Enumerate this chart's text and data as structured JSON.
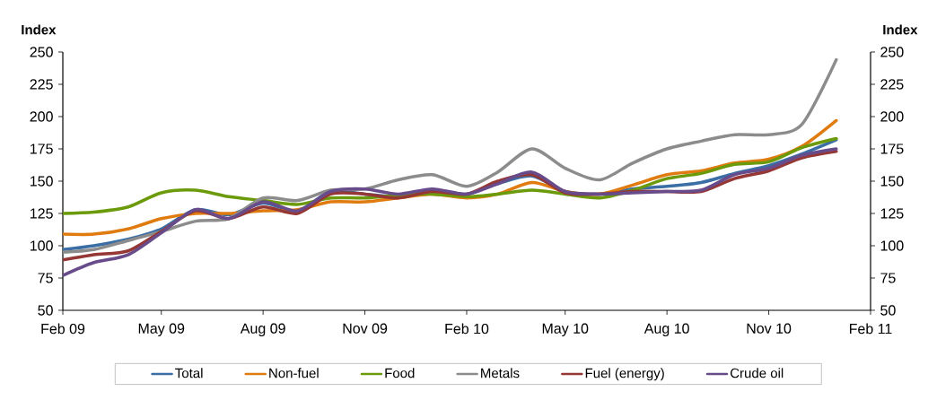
{
  "chart_data": {
    "type": "line",
    "ylabel": "Index",
    "y2label": "Index",
    "x": [
      "2009-02",
      "2009-03",
      "2009-04",
      "2009-05",
      "2009-06",
      "2009-07",
      "2009-08",
      "2009-09",
      "2009-10",
      "2009-11",
      "2009-12",
      "2010-01",
      "2010-02",
      "2010-03",
      "2010-04",
      "2010-05",
      "2010-06",
      "2010-07",
      "2010-08",
      "2010-09",
      "2010-10",
      "2010-11",
      "2010-12",
      "2011-01"
    ],
    "xlim": [
      "2009-02",
      "2011-02"
    ],
    "xticks": [
      {
        "value": "2009-02",
        "label": "Feb 09"
      },
      {
        "value": "2009-05",
        "label": "May 09"
      },
      {
        "value": "2009-08",
        "label": "Aug 09"
      },
      {
        "value": "2009-11",
        "label": "Nov 09"
      },
      {
        "value": "2010-02",
        "label": "Feb 10"
      },
      {
        "value": "2010-05",
        "label": "May 10"
      },
      {
        "value": "2010-08",
        "label": "Aug 10"
      },
      {
        "value": "2010-11",
        "label": "Nov 10"
      },
      {
        "value": "2011-02",
        "label": "Feb 11"
      }
    ],
    "ylim": [
      50,
      250
    ],
    "yticks": [
      50,
      75,
      100,
      125,
      150,
      175,
      200,
      225,
      250
    ],
    "y2lim": [
      50,
      250
    ],
    "y2ticks": [
      50,
      75,
      100,
      125,
      150,
      175,
      200,
      225,
      250
    ],
    "legend": "bottom",
    "marker": "none",
    "line_style": "solid",
    "series": [
      {
        "name": "Total",
        "color": "#3a6ea5",
        "values": [
          97,
          100,
          105,
          113,
          128,
          124,
          133,
          127,
          142,
          140,
          138,
          143,
          140,
          148,
          154,
          142,
          140,
          144,
          146,
          149,
          156,
          162,
          171,
          182
        ]
      },
      {
        "name": "Non-fuel",
        "color": "#e07b10",
        "values": [
          109,
          109,
          113,
          121,
          125,
          125,
          127,
          128,
          134,
          134,
          137,
          140,
          137,
          140,
          149,
          142,
          140,
          147,
          155,
          158,
          164,
          167,
          177,
          197
        ]
      },
      {
        "name": "Food",
        "color": "#6b9a0b",
        "values": [
          125,
          126,
          130,
          141,
          143,
          138,
          135,
          132,
          137,
          137,
          139,
          140,
          138,
          140,
          143,
          140,
          137,
          143,
          152,
          156,
          163,
          165,
          176,
          183
        ]
      },
      {
        "name": "Metals",
        "color": "#8c8c8c",
        "values": [
          95,
          97,
          104,
          111,
          119,
          121,
          137,
          135,
          143,
          144,
          151,
          155,
          146,
          157,
          175,
          160,
          151,
          164,
          175,
          181,
          186,
          186,
          194,
          244
        ]
      },
      {
        "name": "Fuel (energy)",
        "color": "#953735",
        "values": [
          89,
          93,
          96,
          111,
          127,
          121,
          130,
          125,
          140,
          140,
          137,
          142,
          140,
          150,
          155,
          141,
          140,
          142,
          142,
          142,
          152,
          158,
          168,
          173
        ]
      },
      {
        "name": "Crude oil",
        "color": "#674b8a",
        "values": [
          77,
          87,
          93,
          110,
          128,
          121,
          134,
          127,
          142,
          144,
          140,
          144,
          140,
          148,
          157,
          142,
          140,
          141,
          142,
          143,
          155,
          160,
          170,
          175
        ]
      }
    ]
  }
}
